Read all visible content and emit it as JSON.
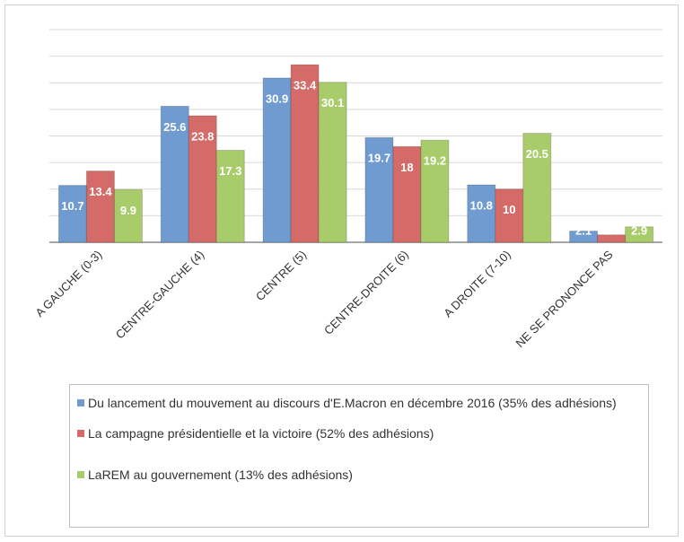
{
  "chart_data": {
    "type": "bar",
    "categories": [
      "A GAUCHE (0-3)",
      "CENTRE-GAUCHE (4)",
      "CENTRE (5)",
      "CENTRE-DROITE (6)",
      "A DROITE (7-10)",
      "NE SE PRONONCE PAS"
    ],
    "series": [
      {
        "name": "Du lancement du mouvement au discours d'E.Macron en décembre 2016 (35% des adhésions)",
        "color": "#6f9bd1",
        "values": [
          10.7,
          25.6,
          30.9,
          19.7,
          10.8,
          2.1
        ]
      },
      {
        "name": "La campagne présidentielle et la victoire (52% des adhésions)",
        "color": "#d46b68",
        "values": [
          13.4,
          23.8,
          33.4,
          18,
          10,
          1.4
        ]
      },
      {
        "name": "LaREM au gouvernement (13% des adhésions)",
        "color": "#a9cc6b",
        "values": [
          9.9,
          17.3,
          30.1,
          19.2,
          20.5,
          2.9
        ]
      }
    ],
    "ylim": [
      0,
      40
    ],
    "yticks": [
      0,
      5,
      10,
      15,
      20,
      25,
      30,
      35,
      40
    ],
    "grid": true,
    "legend": "bottom"
  }
}
